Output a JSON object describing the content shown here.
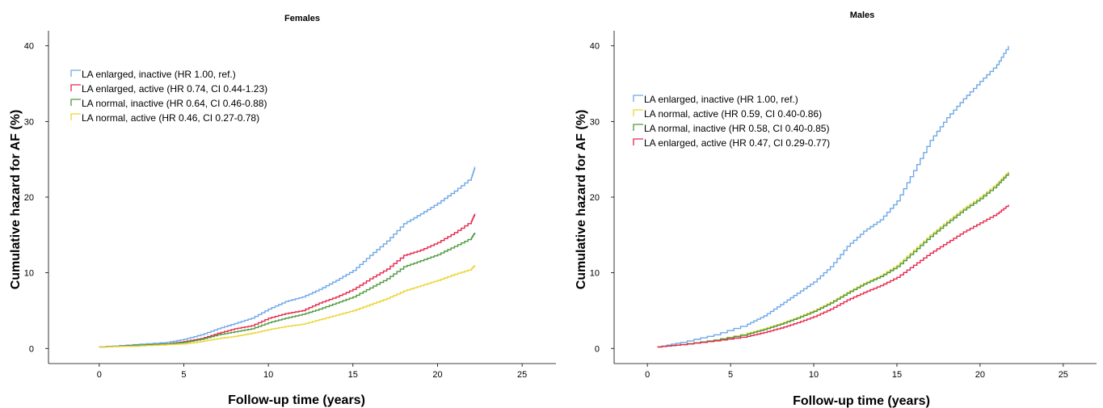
{
  "chart_data": [
    {
      "type": "line",
      "title": "Females",
      "xlabel": "Follow-up time (years)",
      "ylabel": "Cumulative hazard for AF (%)",
      "xlim": [
        -3,
        27
      ],
      "ylim": [
        -2,
        42
      ],
      "xticks": [
        "0",
        "5",
        "10",
        "15",
        "20",
        "25"
      ],
      "yticks": [
        "0",
        "10",
        "20",
        "30",
        "40"
      ],
      "legend": "upper-left",
      "series": [
        {
          "name": "LA enlarged, inactive (HR 1.00, ref.)",
          "color": "#6fa8e8",
          "x": [
            0,
            2,
            4,
            5,
            6,
            7,
            8,
            9,
            10,
            11,
            12,
            13,
            14,
            15,
            16,
            17,
            18,
            19,
            20,
            21,
            22,
            22.2
          ],
          "y": [
            0.2,
            0.5,
            0.8,
            1.2,
            1.8,
            2.6,
            3.3,
            4.0,
            5.2,
            6.2,
            6.8,
            7.8,
            9.0,
            10.3,
            12.3,
            14.2,
            16.5,
            17.8,
            19.2,
            20.8,
            22.6,
            24.0
          ]
        },
        {
          "name": "LA enlarged, active (HR 0.74, CI 0.44-1.23)",
          "color": "#e8274b",
          "x": [
            0,
            2,
            4,
            5,
            6,
            7,
            8,
            9,
            10,
            11,
            12,
            13,
            14,
            15,
            16,
            17,
            18,
            19,
            20,
            21,
            22,
            22.2
          ],
          "y": [
            0.2,
            0.4,
            0.6,
            0.9,
            1.3,
            2.0,
            2.6,
            3.0,
            4.0,
            4.6,
            5.0,
            6.0,
            6.8,
            7.8,
            9.2,
            10.5,
            12.3,
            13.0,
            14.0,
            15.3,
            16.8,
            17.8
          ]
        },
        {
          "name": "LA normal, inactive (HR 0.64, CI 0.46-0.88)",
          "color": "#4c9a3c",
          "x": [
            0,
            2,
            4,
            5,
            6,
            7,
            8,
            9,
            10,
            11,
            12,
            13,
            14,
            15,
            16,
            17,
            18,
            19,
            20,
            21,
            22,
            22.2
          ],
          "y": [
            0.2,
            0.4,
            0.6,
            0.8,
            1.2,
            1.8,
            2.2,
            2.6,
            3.4,
            4.0,
            4.5,
            5.2,
            6.0,
            6.8,
            8.0,
            9.2,
            10.8,
            11.6,
            12.4,
            13.5,
            14.6,
            15.3
          ]
        },
        {
          "name": "LA normal, active (HR 0.46, CI 0.27-0.78)",
          "color": "#ecd534",
          "x": [
            0,
            2,
            4,
            5,
            6,
            7,
            8,
            9,
            10,
            11,
            12,
            13,
            14,
            15,
            16,
            17,
            18,
            19,
            20,
            21,
            22,
            22.2
          ],
          "y": [
            0.2,
            0.3,
            0.5,
            0.6,
            0.9,
            1.3,
            1.6,
            2.0,
            2.5,
            2.9,
            3.2,
            3.8,
            4.4,
            5.0,
            5.8,
            6.6,
            7.6,
            8.3,
            9.0,
            9.8,
            10.5,
            11.0
          ]
        }
      ]
    },
    {
      "type": "line",
      "title": "Males",
      "xlabel": "Follow-up time (years)",
      "ylabel": "Cumulative hazard for AF (%)",
      "xlim": [
        -2,
        27
      ],
      "ylim": [
        -2,
        42
      ],
      "xticks": [
        "0",
        "5",
        "10",
        "15",
        "20",
        "25"
      ],
      "yticks": [
        "0",
        "10",
        "20",
        "30",
        "40"
      ],
      "legend": "upper-left",
      "series": [
        {
          "name": "LA enlarged, inactive (HR 1.00, ref.)",
          "color": "#6fa8e8",
          "x": [
            0.6,
            2,
            4,
            6,
            7,
            8,
            9,
            10,
            11,
            12,
            13,
            14,
            15,
            16,
            17,
            18,
            19,
            20,
            21,
            21.7
          ],
          "y": [
            0.2,
            0.8,
            1.8,
            3.2,
            4.3,
            5.8,
            7.3,
            8.8,
            10.8,
            13.5,
            15.5,
            17.0,
            19.5,
            23.5,
            27.5,
            30.5,
            33.0,
            35.3,
            37.5,
            40.0
          ]
        },
        {
          "name": "LA normal, active (HR 0.59, CI 0.40-0.86)",
          "color": "#ecd534",
          "x": [
            0.6,
            2,
            4,
            6,
            7,
            8,
            9,
            10,
            11,
            12,
            13,
            14,
            15,
            16,
            17,
            18,
            19,
            20,
            21,
            21.7
          ],
          "y": [
            0.2,
            0.5,
            1.1,
            2.0,
            2.6,
            3.3,
            4.1,
            5.0,
            6.1,
            7.4,
            8.6,
            9.6,
            11.0,
            13.0,
            15.0,
            16.8,
            18.5,
            20.0,
            21.8,
            23.4
          ]
        },
        {
          "name": "LA normal, inactive (HR 0.58, CI 0.40-0.85)",
          "color": "#4c9a3c",
          "x": [
            0.6,
            2,
            4,
            6,
            7,
            8,
            9,
            10,
            11,
            12,
            13,
            14,
            15,
            16,
            17,
            18,
            19,
            20,
            21,
            21.7
          ],
          "y": [
            0.2,
            0.5,
            1.1,
            1.9,
            2.5,
            3.2,
            4.0,
            4.9,
            6.0,
            7.3,
            8.5,
            9.5,
            10.8,
            12.8,
            14.8,
            16.6,
            18.3,
            19.8,
            21.6,
            23.2
          ]
        },
        {
          "name": "LA enlarged, active (HR 0.47, CI 0.29-0.77)",
          "color": "#e8274b",
          "x": [
            0.6,
            2,
            4,
            6,
            7,
            8,
            9,
            10,
            11,
            12,
            13,
            14,
            15,
            16,
            17,
            18,
            19,
            20,
            21,
            21.7
          ],
          "y": [
            0.2,
            0.5,
            1.0,
            1.6,
            2.1,
            2.7,
            3.4,
            4.2,
            5.2,
            6.4,
            7.4,
            8.3,
            9.4,
            11.0,
            12.6,
            14.0,
            15.4,
            16.6,
            17.8,
            19.0
          ]
        }
      ]
    }
  ]
}
